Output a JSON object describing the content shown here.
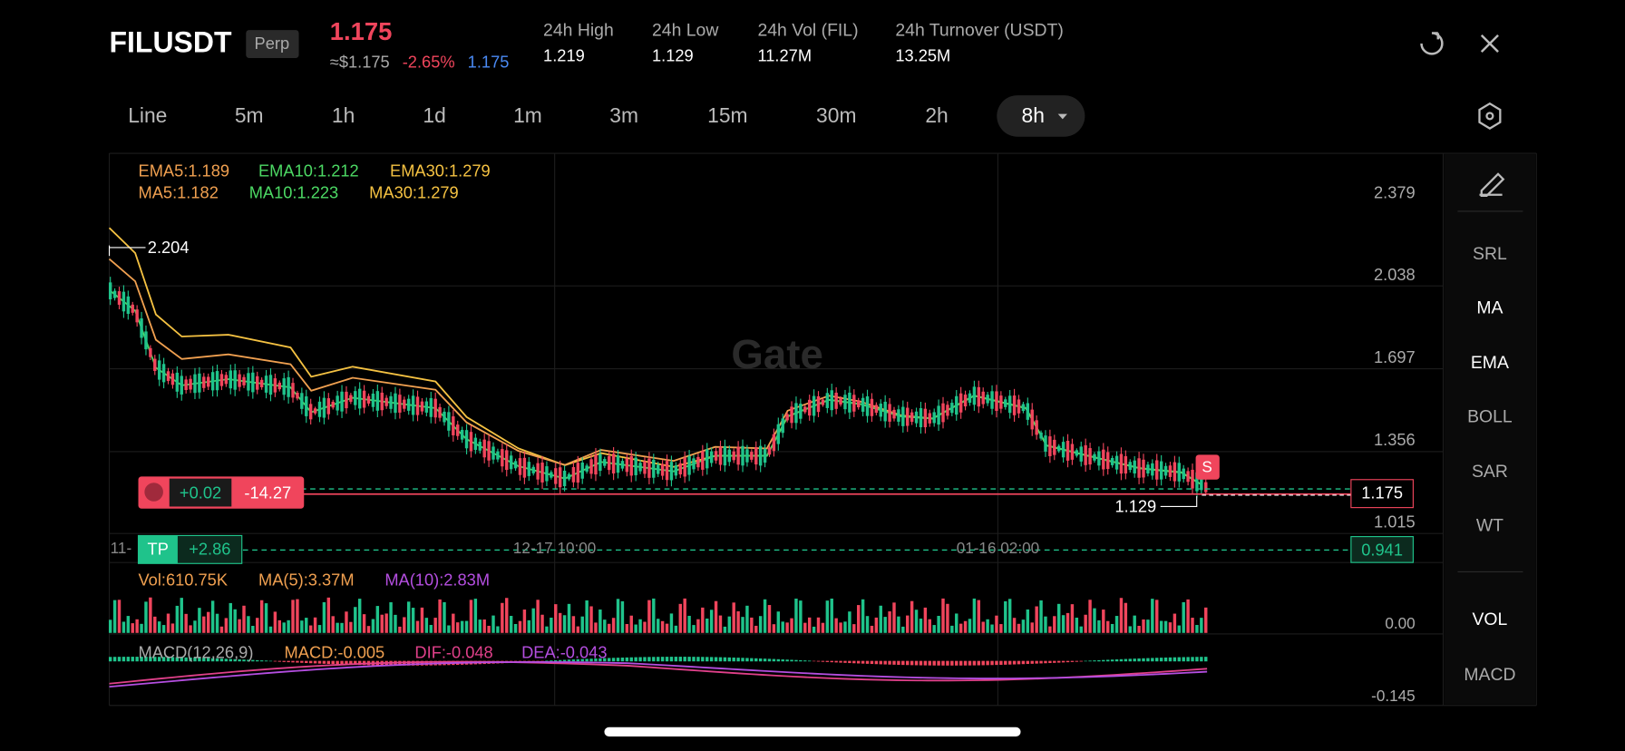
{
  "header": {
    "symbol": "FILUSDT",
    "badge": "Perp",
    "price": "1.175",
    "usd_price": "≈$1.175",
    "change": "-2.65%",
    "mark_price": "1.175",
    "stats": [
      {
        "label": "24h  High",
        "value": "1.219"
      },
      {
        "label": "24h  Low",
        "value": "1.129"
      },
      {
        "label": "24h  Vol (FIL)",
        "value": "11.27M"
      },
      {
        "label": "24h  Turnover (USDT)",
        "value": "13.25M"
      }
    ]
  },
  "timeframes": [
    "Line",
    "5m",
    "1h",
    "1d",
    "1m",
    "3m",
    "15m",
    "30m",
    "2h",
    "8h"
  ],
  "indicators": {
    "ema": [
      "EMA5:1.189",
      "EMA10:1.212",
      "EMA30:1.279"
    ],
    "ma": [
      "MA5:1.182",
      "MA10:1.223",
      "MA30:1.279"
    ]
  },
  "price_axis": [
    "2.379",
    "2.038",
    "1.697",
    "1.356",
    "1.015"
  ],
  "annotations": {
    "high": "2.204",
    "low": "1.129",
    "current": "1.175",
    "tp_price": "0.941",
    "position_pnl": "+0.02",
    "position_loss": "-14.27",
    "tp": "TP",
    "tp_pnl": "+2.86",
    "signal": "S",
    "dates": [
      "12-17 10:00",
      "01-16 02:00"
    ],
    "left_date": "11-"
  },
  "volume": {
    "labels": [
      "Vol:610.75K",
      "MA(5):3.37M",
      "MA(10):2.83M"
    ],
    "axis": "0.00"
  },
  "macd": {
    "labels": [
      "MACD(12,26,9)",
      "MACD:-0.005",
      "DIF:-0.048",
      "DEA:-0.043"
    ],
    "axis": "-0.145"
  },
  "sidebar": [
    "SRL",
    "MA",
    "EMA",
    "BOLL",
    "SAR",
    "WT",
    "VOL",
    "MACD"
  ],
  "watermark": "Gate"
}
